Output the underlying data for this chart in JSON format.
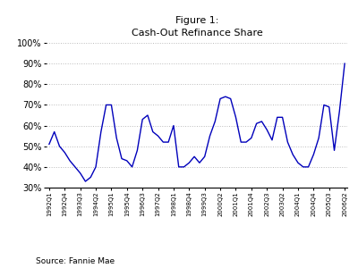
{
  "title": "Figure 1:\nCash-Out Refinance Share",
  "source": "Source: Fannie Mae",
  "line_color": "#0000BB",
  "background_color": "#ffffff",
  "grid_color": "#bbbbbb",
  "ylim": [
    0.3,
    1.0
  ],
  "yticks": [
    0.3,
    0.4,
    0.5,
    0.6,
    0.7,
    0.8,
    0.9,
    1.0
  ],
  "values": [
    0.51,
    0.57,
    0.5,
    0.47,
    0.43,
    0.4,
    0.37,
    0.33,
    0.35,
    0.4,
    0.57,
    0.7,
    0.7,
    0.54,
    0.44,
    0.43,
    0.4,
    0.48,
    0.63,
    0.65,
    0.57,
    0.55,
    0.52,
    0.52,
    0.6,
    0.4,
    0.4,
    0.42,
    0.45,
    0.42,
    0.45,
    0.55,
    0.62,
    0.73,
    0.74,
    0.73,
    0.64,
    0.52,
    0.52,
    0.54,
    0.61,
    0.62,
    0.58,
    0.53,
    0.64,
    0.64,
    0.52,
    0.46,
    0.42,
    0.4,
    0.4,
    0.46,
    0.54,
    0.7,
    0.69,
    0.48,
    0.67,
    0.9
  ],
  "tick_step": 3,
  "title_fontsize": 8,
  "source_fontsize": 6.5,
  "tick_fontsize": 5.0
}
